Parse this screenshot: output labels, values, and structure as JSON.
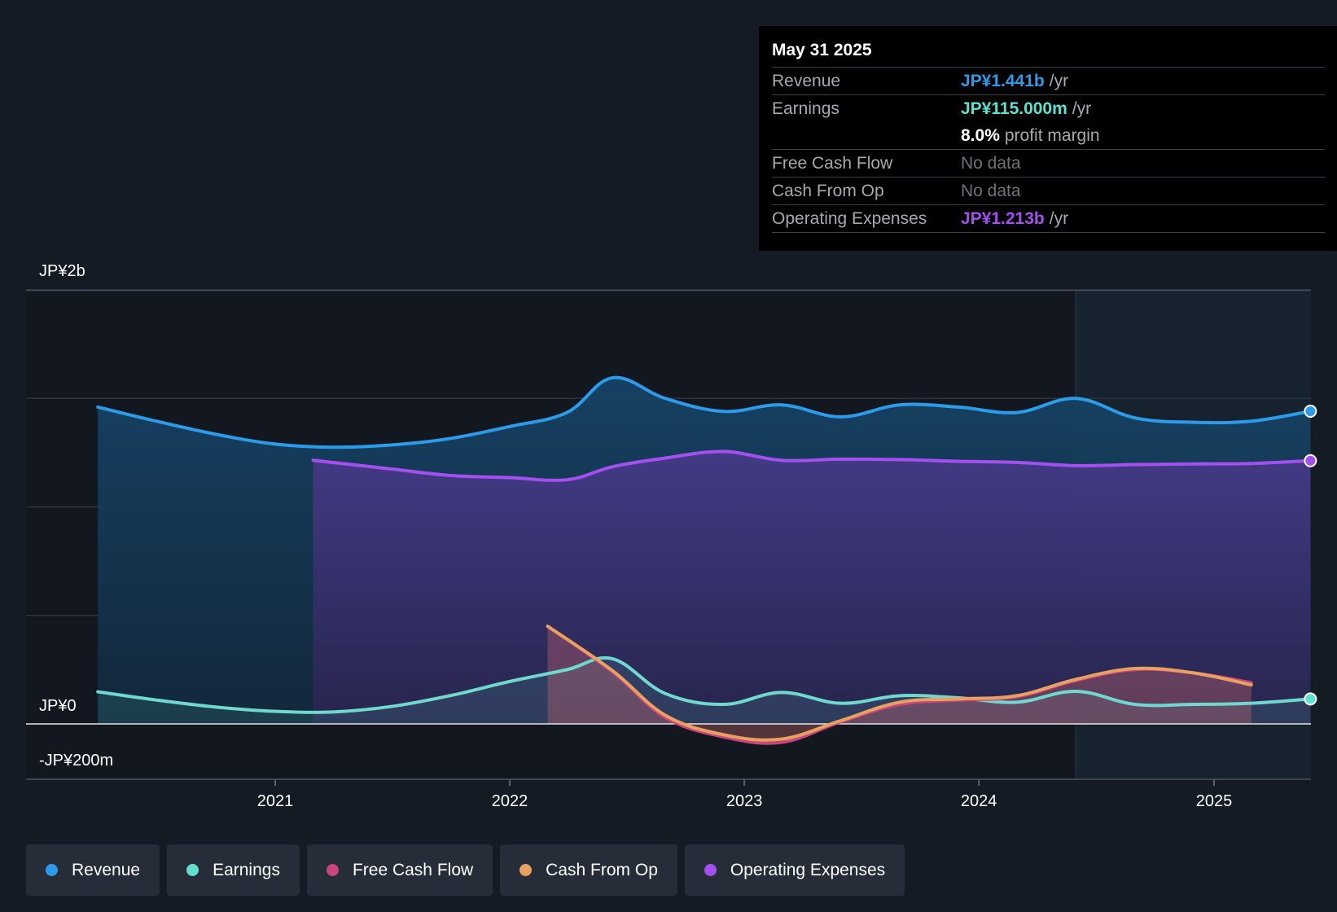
{
  "chart_data": {
    "type": "line",
    "title": "",
    "xlabel": "",
    "ylabel": "",
    "x_ticks": [
      "2021",
      "2022",
      "2023",
      "2024",
      "2025"
    ],
    "y_ticks": [
      "JP¥2b",
      "JP¥0",
      "-JP¥200m"
    ],
    "ylim": [
      -200,
      2000
    ],
    "y_unit": "JP¥m",
    "grid": true,
    "legend_position": "bottom",
    "series": [
      {
        "name": "Revenue",
        "color": "#2c9cea",
        "x": [
          "2020-03-31",
          "2020-06-30",
          "2020-09-30",
          "2020-12-31",
          "2021-03-31",
          "2021-06-30",
          "2021-09-30",
          "2021-12-31",
          "2022-03-31",
          "2022-06-10",
          "2022-08-31",
          "2022-11-30",
          "2023-02-28",
          "2023-05-31",
          "2023-08-31",
          "2023-11-30",
          "2024-02-29",
          "2024-05-31",
          "2024-08-31",
          "2024-11-30",
          "2025-02-28",
          "2025-05-31"
        ],
        "values": [
          1460,
          1395,
          1335,
          1290,
          1275,
          1285,
          1315,
          1370,
          1435,
          1595,
          1500,
          1440,
          1470,
          1415,
          1470,
          1460,
          1435,
          1500,
          1410,
          1390,
          1395,
          1441
        ]
      },
      {
        "name": "Earnings",
        "color": "#5fe0cf",
        "x": [
          "2020-03-31",
          "2020-06-30",
          "2020-09-30",
          "2020-12-31",
          "2021-03-31",
          "2021-06-30",
          "2021-09-30",
          "2021-12-31",
          "2022-03-31",
          "2022-06-10",
          "2022-08-31",
          "2022-11-30",
          "2023-02-28",
          "2023-05-31",
          "2023-08-31",
          "2023-11-30",
          "2024-02-29",
          "2024-05-31",
          "2024-08-31",
          "2024-11-30",
          "2025-02-28",
          "2025-05-31"
        ],
        "values": [
          148,
          110,
          78,
          58,
          55,
          80,
          130,
          195,
          250,
          300,
          140,
          90,
          145,
          95,
          130,
          120,
          100,
          150,
          90,
          90,
          95,
          115
        ]
      },
      {
        "name": "Free Cash Flow",
        "color": "#c8457e",
        "x": [
          "2022-03-01",
          "2022-06-10",
          "2022-08-31",
          "2022-11-30",
          "2023-02-28",
          "2023-05-31",
          "2023-08-31",
          "2023-11-30",
          "2024-02-29",
          "2024-05-31",
          "2024-08-31",
          "2024-11-30",
          "2025-02-28"
        ],
        "values": [
          450,
          240,
          30,
          -60,
          -85,
          10,
          90,
          110,
          125,
          200,
          250,
          235,
          190
        ]
      },
      {
        "name": "Cash From Op",
        "color": "#e8a15e",
        "x": [
          "2022-03-01",
          "2022-06-10",
          "2022-08-31",
          "2022-11-30",
          "2023-02-28",
          "2023-05-31",
          "2023-08-31",
          "2023-11-30",
          "2024-02-29",
          "2024-05-31",
          "2024-08-31",
          "2024-11-30",
          "2025-02-28"
        ],
        "values": [
          450,
          245,
          40,
          -50,
          -70,
          15,
          100,
          115,
          130,
          205,
          255,
          235,
          180
        ]
      },
      {
        "name": "Operating Expenses",
        "color": "#a44ff0",
        "x": [
          "2021-03-01",
          "2021-06-30",
          "2021-09-30",
          "2021-12-31",
          "2022-03-31",
          "2022-06-10",
          "2022-08-31",
          "2022-11-30",
          "2023-02-28",
          "2023-05-31",
          "2023-08-31",
          "2023-11-30",
          "2024-02-29",
          "2024-05-31",
          "2024-08-31",
          "2024-11-30",
          "2025-02-28",
          "2025-05-31"
        ],
        "values": [
          1215,
          1175,
          1145,
          1135,
          1125,
          1185,
          1225,
          1255,
          1215,
          1220,
          1218,
          1210,
          1205,
          1190,
          1195,
          1198,
          1200,
          1213
        ]
      }
    ],
    "highlight_region_start": "2024-05-31"
  },
  "tooltip": {
    "date": "May 31 2025",
    "rows": [
      {
        "label": "Revenue",
        "value": "JP¥1.441b",
        "unit": "/yr",
        "color": "#2c9cea"
      },
      {
        "label": "Earnings",
        "value": "JP¥115.000m",
        "unit": "/yr",
        "color": "#5fe0cf"
      },
      {
        "label": "",
        "value": "8.0%",
        "unit": "profit margin",
        "color": "#ffffff"
      },
      {
        "label": "Free Cash Flow",
        "value": "No data",
        "unit": "",
        "color": "nodata"
      },
      {
        "label": "Cash From Op",
        "value": "No data",
        "unit": "",
        "color": "nodata"
      },
      {
        "label": "Operating Expenses",
        "value": "JP¥1.213b",
        "unit": "/yr",
        "color": "#a44ff0"
      }
    ]
  },
  "legend": [
    {
      "label": "Revenue",
      "color": "#2c9cea"
    },
    {
      "label": "Earnings",
      "color": "#5fe0cf"
    },
    {
      "label": "Free Cash Flow",
      "color": "#c8457e"
    },
    {
      "label": "Cash From Op",
      "color": "#e8a15e"
    },
    {
      "label": "Operating Expenses",
      "color": "#a44ff0"
    }
  ]
}
